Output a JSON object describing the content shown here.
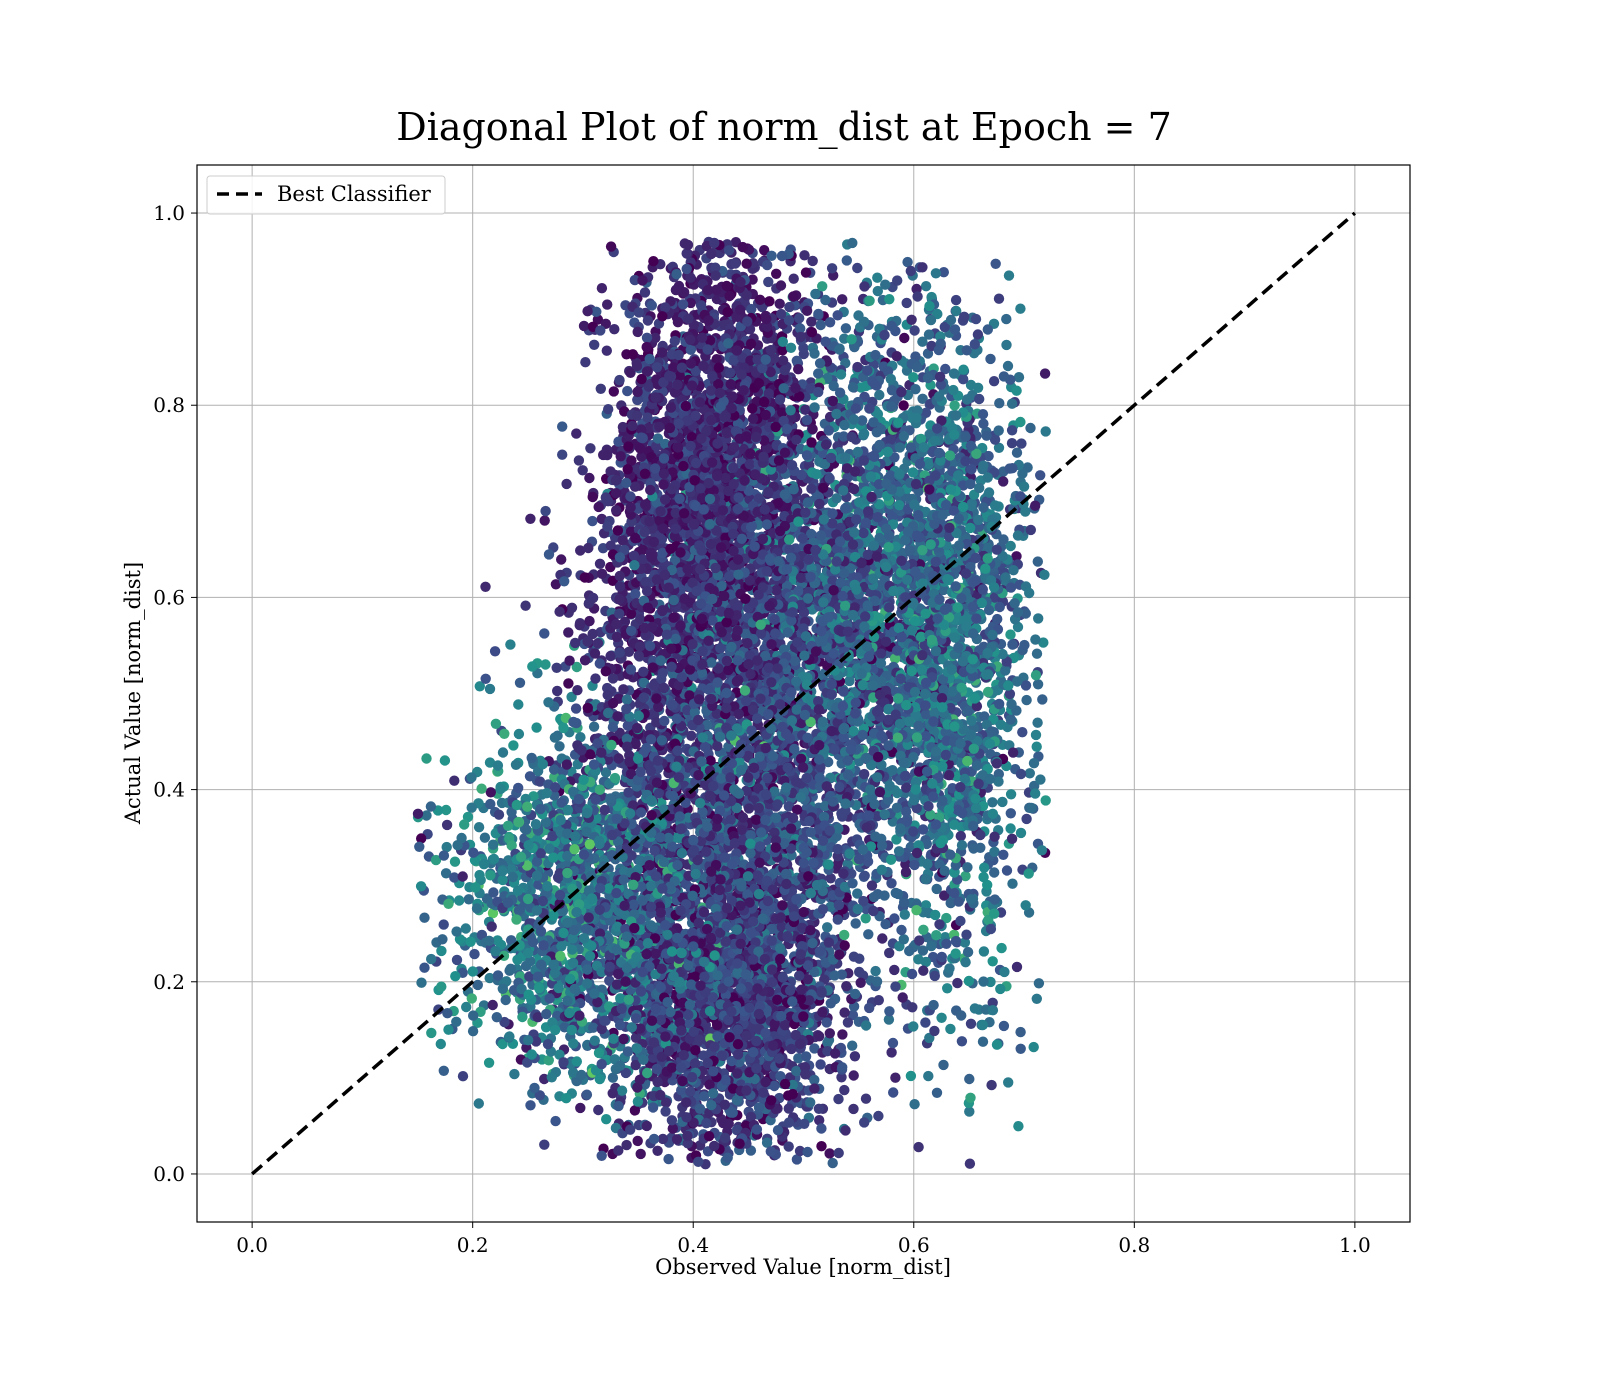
{
  "chart_data": {
    "type": "scatter",
    "title": "Diagonal Plot of norm_dist at Epoch = 7",
    "xlabel": "Observed Value [norm_dist]",
    "ylabel": "Actual Value [norm_dist]",
    "xlim": [
      -0.05,
      1.05
    ],
    "ylim": [
      -0.05,
      1.05
    ],
    "xticks": [
      "0.0",
      "0.2",
      "0.4",
      "0.6",
      "0.8",
      "1.0"
    ],
    "yticks": [
      "0.0",
      "0.2",
      "0.4",
      "0.6",
      "0.8",
      "1.0"
    ],
    "grid": true,
    "legend": {
      "placement": "top-left",
      "entries": [
        "Best Classifier"
      ]
    },
    "colormap": [
      "#440154",
      "#3b528b",
      "#21918c",
      "#5ec962",
      "#fde725"
    ],
    "reference_line": {
      "name": "Best Classifier",
      "x": [
        0.0,
        1.0
      ],
      "y": [
        0.0,
        1.0
      ],
      "style": "dashed",
      "color": "#000000"
    },
    "point_cloud": {
      "description_x_range": [
        0.15,
        0.72
      ],
      "description_y_range": [
        0.01,
        0.97
      ],
      "clusters": [
        {
          "cx": 0.42,
          "cy": 0.75,
          "sx": 0.045,
          "sy": 0.13,
          "n": 2200,
          "c_mean": 0.12,
          "c_sd": 0.08
        },
        {
          "cx": 0.43,
          "cy": 0.18,
          "sx": 0.05,
          "sy": 0.09,
          "n": 1800,
          "c_mean": 0.18,
          "c_sd": 0.1
        },
        {
          "cx": 0.58,
          "cy": 0.62,
          "sx": 0.06,
          "sy": 0.15,
          "n": 2400,
          "c_mean": 0.32,
          "c_sd": 0.12
        },
        {
          "cx": 0.3,
          "cy": 0.28,
          "sx": 0.06,
          "sy": 0.09,
          "n": 1700,
          "c_mean": 0.38,
          "c_sd": 0.13
        },
        {
          "cx": 0.46,
          "cy": 0.45,
          "sx": 0.07,
          "sy": 0.16,
          "n": 2600,
          "c_mean": 0.22,
          "c_sd": 0.11
        },
        {
          "cx": 0.64,
          "cy": 0.48,
          "sx": 0.035,
          "sy": 0.18,
          "n": 900,
          "c_mean": 0.36,
          "c_sd": 0.12
        },
        {
          "cx": 0.36,
          "cy": 0.55,
          "sx": 0.035,
          "sy": 0.12,
          "n": 600,
          "c_mean": 0.12,
          "c_sd": 0.07
        }
      ]
    }
  }
}
